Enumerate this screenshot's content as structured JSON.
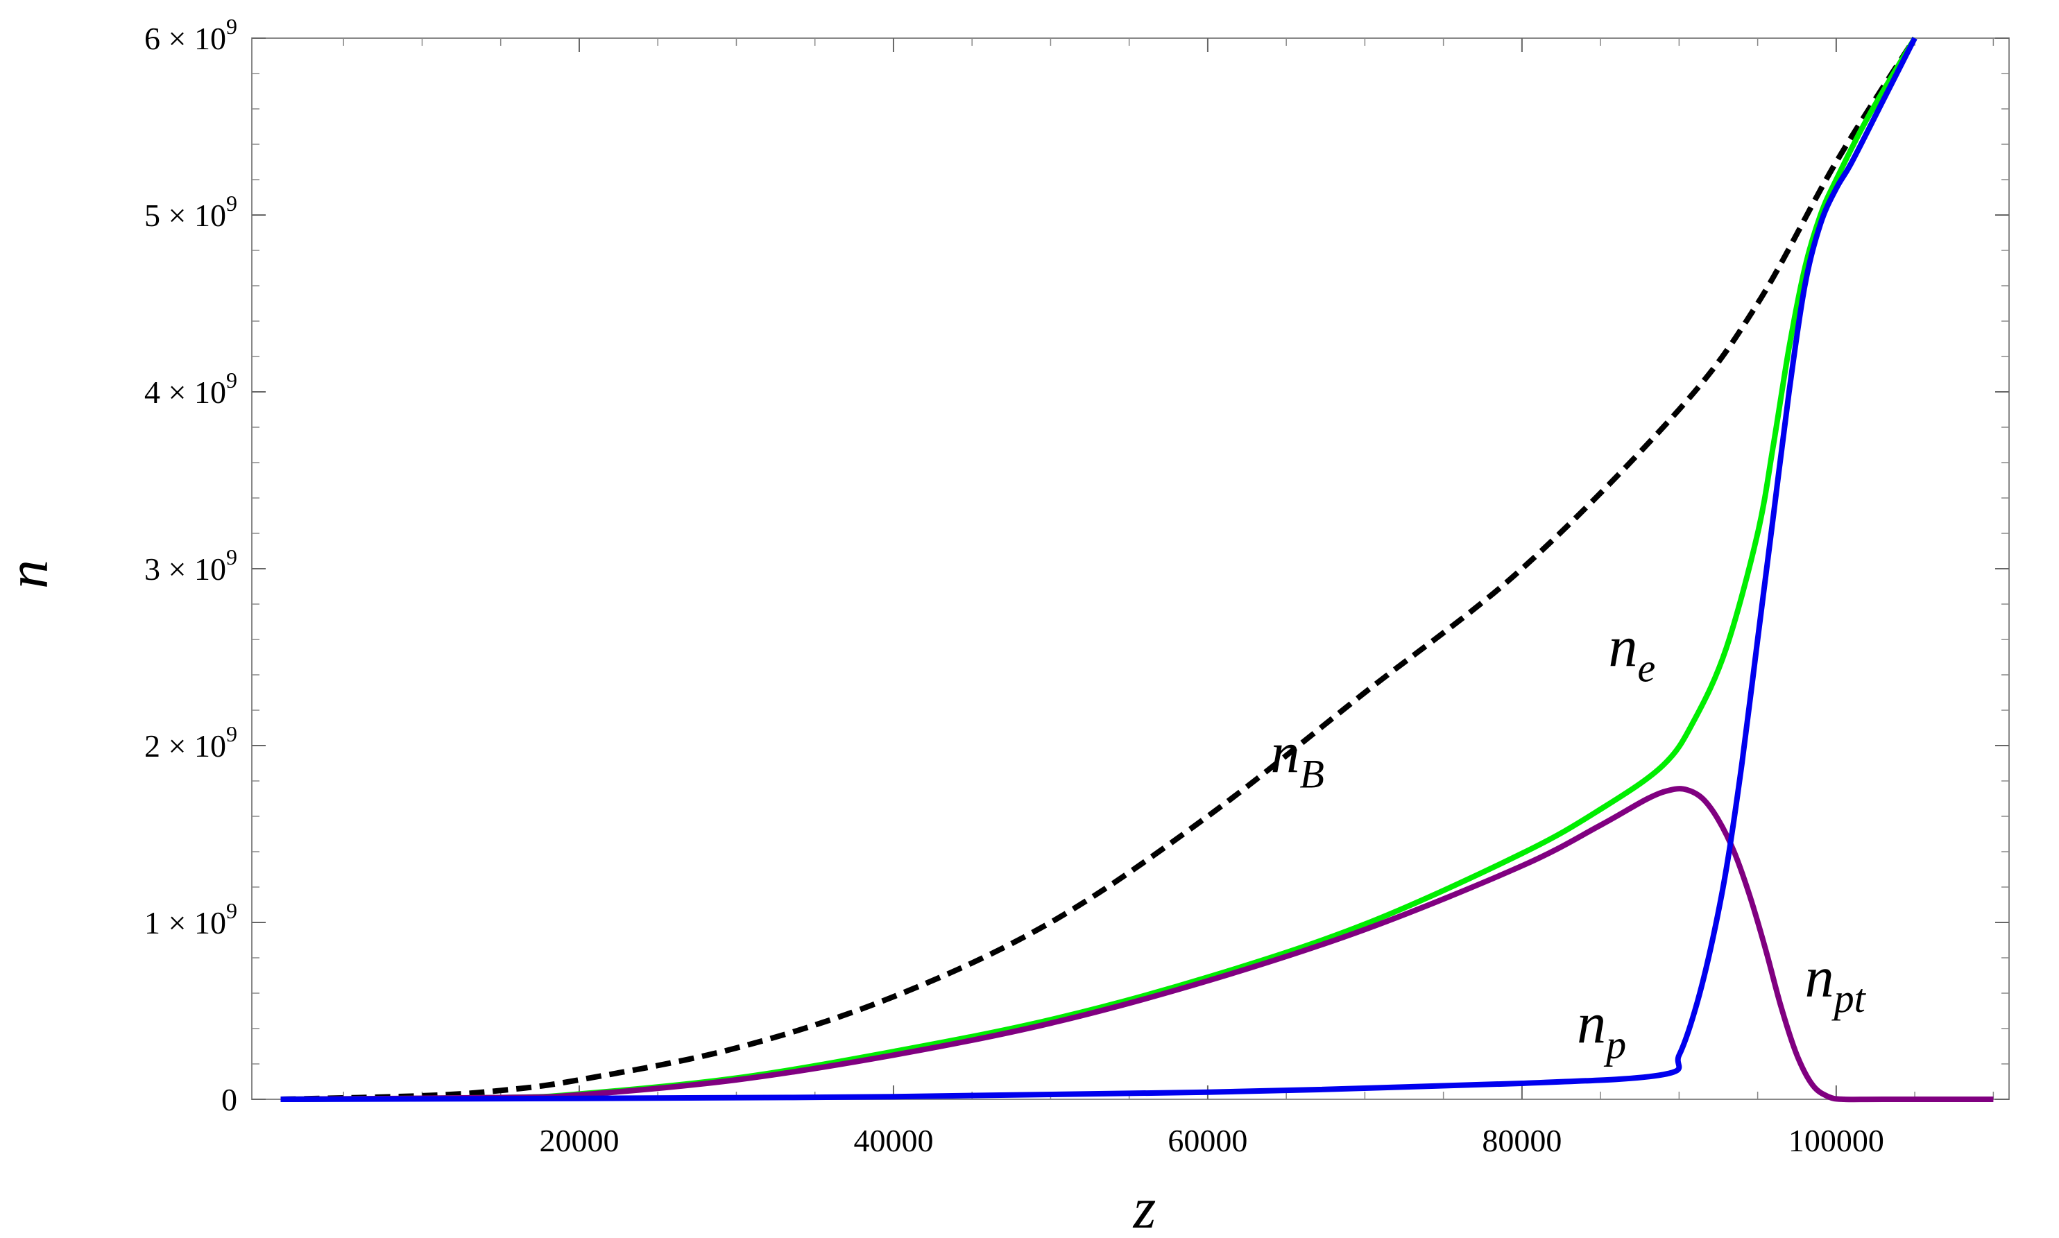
{
  "chart_data": {
    "type": "line",
    "xlabel": "z",
    "ylabel": "n",
    "xlim": [
      0,
      111000
    ],
    "ylim": [
      0,
      6000000000
    ],
    "x_ticks": [
      {
        "value": 20000,
        "label": "20000"
      },
      {
        "value": 40000,
        "label": "40000"
      },
      {
        "value": 60000,
        "label": "60000"
      },
      {
        "value": 80000,
        "label": "80000"
      },
      {
        "value": 100000,
        "label": "100000"
      }
    ],
    "y_ticks": [
      {
        "value": 0,
        "label": "0"
      },
      {
        "value": 1000000000,
        "label": "1 × 10",
        "exp": "9"
      },
      {
        "value": 2000000000,
        "label": "2 × 10",
        "exp": "9"
      },
      {
        "value": 3000000000,
        "label": "3 × 10",
        "exp": "9"
      },
      {
        "value": 4000000000,
        "label": "4 × 10",
        "exp": "9"
      },
      {
        "value": 5000000000,
        "label": "5 × 10",
        "exp": "9"
      },
      {
        "value": 6000000000,
        "label": "6 × 10",
        "exp": "9"
      }
    ],
    "grid": false,
    "series": [
      {
        "name": "n_B",
        "label_base": "n",
        "label_sub": "B",
        "color": "#000000",
        "style": "dashed",
        "x": [
          1000,
          10000,
          15000,
          20000,
          30000,
          40000,
          50000,
          60000,
          70000,
          80000,
          90000,
          95000,
          100000,
          105000
        ],
        "y": [
          0,
          20000000,
          50000000,
          110000000,
          290000000,
          580000000,
          1000000000,
          1600000000,
          2300000000,
          3000000000,
          3900000000,
          4500000000,
          5300000000,
          6000000000
        ]
      },
      {
        "name": "n_e",
        "label_base": "n",
        "label_sub": "e",
        "color": "#00ee00",
        "style": "solid",
        "x": [
          1000,
          15000,
          20000,
          30000,
          40000,
          50000,
          60000,
          70000,
          80000,
          85000,
          89000,
          91000,
          93000,
          95000,
          96000,
          97000,
          98000,
          99000,
          100000,
          102000,
          105000
        ],
        "y": [
          0,
          10000000,
          30000000,
          120000000,
          270000000,
          450000000,
          690000000,
          990000000,
          1390000000,
          1640000000,
          1890000000,
          2150000000,
          2550000000,
          3200000000,
          3700000000,
          4250000000,
          4700000000,
          5000000000,
          5200000000,
          5550000000,
          6000000000
        ]
      },
      {
        "name": "n_pt",
        "label_base": "n",
        "label_sub": "pt",
        "color": "#800080",
        "style": "solid",
        "x": [
          1000,
          15000,
          20000,
          30000,
          40000,
          50000,
          60000,
          70000,
          80000,
          85000,
          88000,
          89500,
          90500,
          91500,
          92500,
          93500,
          94500,
          95500,
          96500,
          97500,
          98500,
          99500,
          100500,
          103000,
          110000
        ],
        "y": [
          0,
          10000000,
          25000000,
          110000000,
          250000000,
          430000000,
          670000000,
          960000000,
          1320000000,
          1550000000,
          1700000000,
          1750000000,
          1750000000,
          1700000000,
          1580000000,
          1400000000,
          1150000000,
          850000000,
          520000000,
          250000000,
          80000000,
          15000000,
          0,
          0,
          0
        ]
      },
      {
        "name": "n_p",
        "label_base": "n",
        "label_sub": "p",
        "color": "#0000ee",
        "style": "solid",
        "x": [
          1000,
          20000,
          40000,
          60000,
          80000,
          89000,
          90000,
          91000,
          92000,
          93000,
          94000,
          95000,
          96000,
          97000,
          98000,
          99000,
          100000,
          101000,
          103000,
          105000
        ],
        "y": [
          0,
          5000000,
          15000000,
          40000000,
          90000000,
          140000000,
          250000000,
          500000000,
          850000000,
          1300000000,
          1900000000,
          2600000000,
          3300000000,
          4000000000,
          4600000000,
          4950000000,
          5150000000,
          5300000000,
          5650000000,
          6000000000
        ]
      }
    ],
    "annotations": [
      {
        "series": "n_B",
        "x": 64000,
        "y": 1850000000
      },
      {
        "series": "n_e",
        "x": 85500,
        "y": 2450000000
      },
      {
        "series": "n_p",
        "x": 83500,
        "y": 320000000
      },
      {
        "series": "n_pt",
        "x": 98000,
        "y": 580000000
      }
    ]
  }
}
